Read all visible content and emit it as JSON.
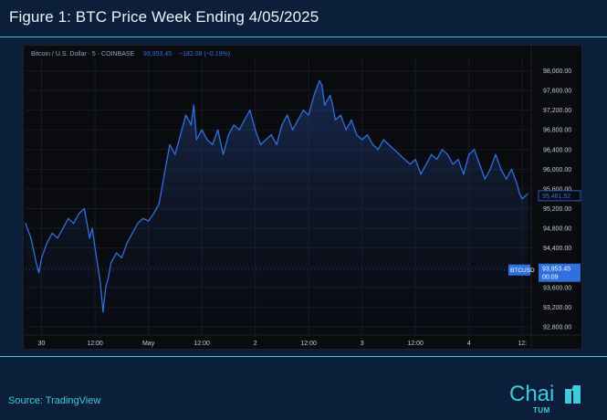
{
  "figure_title": "Figure 1: BTC Price Week Ending 4/05/2025",
  "source_text": "Source: TradingView",
  "logo": {
    "text": "Chai",
    "subtext": "TUM"
  },
  "colors": {
    "background": "#0b1f3a",
    "accent": "#3ecbdc",
    "line": "#2f6fdf",
    "chart_bg": "#0a0b0f"
  },
  "chart_data": {
    "type": "area",
    "header": {
      "symbol": "Bitcoin / U.S. Dollar · 5 · COINBASE",
      "price": "93,953.45",
      "change": "−182.08 (−0.19%)"
    },
    "ylim": [
      92650,
      98250
    ],
    "y_ticks": [
      "98,000.00",
      "97,600.00",
      "97,200.00",
      "96,800.00",
      "96,400.00",
      "96,000.00",
      "95,600.00",
      "95,200.00",
      "94,800.00",
      "94,400.00",
      "94,000.00",
      "93,600.00",
      "93,200.00",
      "92,800.00"
    ],
    "y_tick_values": [
      98000,
      97600,
      97200,
      96800,
      96400,
      96000,
      95600,
      95200,
      94800,
      94400,
      94000,
      93600,
      93200,
      92800
    ],
    "x_ticks": [
      "30",
      "12:00",
      "May",
      "12:00",
      "2",
      "12:00",
      "3",
      "12:00",
      "4",
      "12:"
    ],
    "x_tick_values": [
      3,
      13,
      23,
      33,
      43,
      53,
      63,
      73,
      83,
      93
    ],
    "xlim": [
      0,
      94.5
    ],
    "last_price_label": "95,461.92",
    "last_price": 95461.92,
    "symbol_tag": "BTCUSD",
    "symbol_price": "93,953.45",
    "symbol_time": "00:09",
    "symbol_price_value": 93953.45,
    "x": [
      0,
      1,
      2,
      2.5,
      3,
      4,
      5,
      6,
      7,
      8,
      9,
      10,
      11,
      12,
      12.5,
      13,
      14,
      14.5,
      15,
      15.5,
      16,
      17,
      18,
      19,
      20,
      21,
      22,
      23,
      24,
      25,
      26,
      27,
      28,
      29,
      30,
      31,
      31.5,
      32,
      33,
      34,
      35,
      36,
      37,
      38,
      39,
      40,
      41,
      42,
      43,
      44,
      45,
      46,
      47,
      48,
      49,
      50,
      51,
      52,
      53,
      54,
      55,
      55.5,
      56,
      57,
      57.5,
      58,
      59,
      60,
      61,
      62,
      63,
      64,
      65,
      66,
      67,
      68,
      69,
      70,
      71,
      72,
      73,
      74,
      75,
      76,
      77,
      78,
      79,
      80,
      81,
      82,
      83,
      84,
      85,
      86,
      87,
      88,
      89,
      90,
      91,
      92,
      92.5,
      93,
      94
    ],
    "values": [
      94900,
      94600,
      94100,
      93900,
      94200,
      94500,
      94700,
      94600,
      94800,
      95000,
      94900,
      95100,
      95200,
      94600,
      94800,
      94400,
      93700,
      93100,
      93600,
      93800,
      94100,
      94300,
      94200,
      94500,
      94700,
      94900,
      95000,
      94950,
      95100,
      95300,
      95900,
      96500,
      96300,
      96700,
      97100,
      96900,
      97300,
      96600,
      96800,
      96600,
      96500,
      96800,
      96300,
      96700,
      96900,
      96800,
      97000,
      97200,
      96800,
      96500,
      96600,
      96700,
      96500,
      96900,
      97100,
      96800,
      97000,
      97200,
      97100,
      97500,
      97800,
      97700,
      97300,
      97500,
      97300,
      97000,
      97100,
      96800,
      97000,
      96700,
      96600,
      96700,
      96500,
      96400,
      96600,
      96500,
      96400,
      96300,
      96200,
      96100,
      96200,
      95900,
      96100,
      96300,
      96200,
      96400,
      96300,
      96100,
      96200,
      95900,
      96300,
      96400,
      96100,
      95800,
      96000,
      96300,
      96000,
      95800,
      96000,
      95700,
      95500,
      95400,
      95500
    ]
  }
}
